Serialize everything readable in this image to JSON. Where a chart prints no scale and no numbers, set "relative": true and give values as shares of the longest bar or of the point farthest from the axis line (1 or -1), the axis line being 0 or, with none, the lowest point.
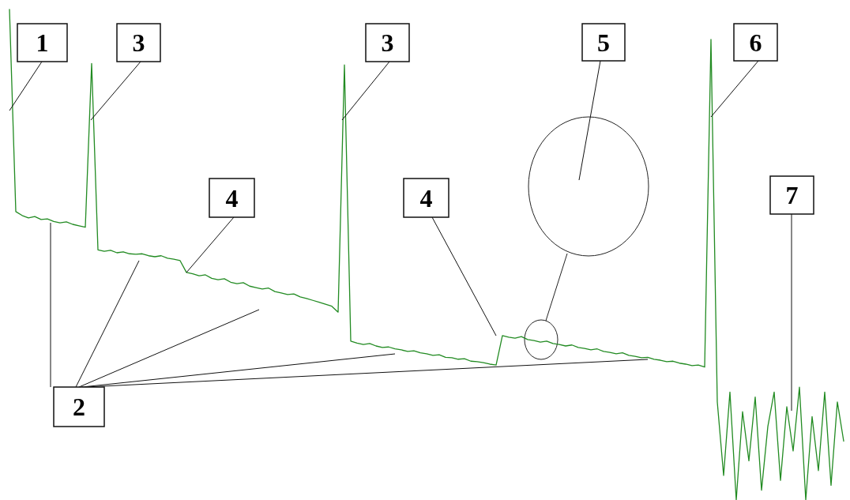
{
  "chart_data": {
    "type": "line",
    "relative": true,
    "categories": [
      null,
      null,
      null,
      null,
      null,
      null,
      null,
      null,
      null,
      null,
      null,
      null,
      null,
      null,
      null,
      null,
      null,
      null,
      null,
      null,
      null,
      null,
      null,
      null,
      null,
      null,
      null,
      null,
      null,
      null,
      null,
      null,
      null,
      null,
      null,
      null,
      null,
      null,
      null,
      null,
      null,
      null,
      null,
      null,
      null,
      null,
      null,
      null,
      null,
      null,
      null,
      null,
      null,
      null,
      null,
      null,
      null,
      null,
      null,
      null,
      null,
      null,
      null,
      null,
      null,
      null,
      null,
      null,
      null,
      null,
      null,
      null,
      null,
      null,
      null,
      null,
      null,
      null,
      null,
      null,
      null,
      null,
      null,
      null,
      null,
      null,
      null,
      null,
      null,
      null,
      null,
      null,
      null,
      null,
      null,
      null,
      null,
      null,
      null,
      null,
      null,
      null,
      null,
      null,
      null,
      null,
      null,
      null,
      null,
      null,
      null,
      null,
      null,
      null,
      null,
      null,
      null,
      null,
      null,
      null,
      null,
      null,
      null,
      null,
      null,
      null,
      null,
      null,
      null,
      null,
      null,
      null,
      null
    ],
    "series": [
      {
        "color": "#228b22",
        "values": [
          1.0,
          0.588,
          0.58,
          0.575,
          0.578,
          0.572,
          0.573,
          0.568,
          0.565,
          0.567,
          0.562,
          0.559,
          0.556,
          0.89,
          0.51,
          0.507,
          0.509,
          0.504,
          0.506,
          0.502,
          0.501,
          0.502,
          0.498,
          0.496,
          0.498,
          0.493,
          0.491,
          0.488,
          0.464,
          0.461,
          0.457,
          0.459,
          0.452,
          0.449,
          0.451,
          0.444,
          0.441,
          0.443,
          0.436,
          0.433,
          0.43,
          0.432,
          0.425,
          0.422,
          0.419,
          0.42,
          0.414,
          0.411,
          0.407,
          0.403,
          0.399,
          0.395,
          0.383,
          0.887,
          0.324,
          0.32,
          0.317,
          0.319,
          0.314,
          0.311,
          0.312,
          0.308,
          0.306,
          0.303,
          0.304,
          0.3,
          0.298,
          0.295,
          0.296,
          0.291,
          0.29,
          0.287,
          0.288,
          0.283,
          0.282,
          0.28,
          0.277,
          0.275,
          0.335,
          0.332,
          0.33,
          0.333,
          0.327,
          0.325,
          0.322,
          0.324,
          0.319,
          0.317,
          0.314,
          0.316,
          0.311,
          0.309,
          0.306,
          0.308,
          0.303,
          0.301,
          0.298,
          0.3,
          0.295,
          0.293,
          0.29,
          0.291,
          0.287,
          0.285,
          0.282,
          0.283,
          0.279,
          0.277,
          0.274,
          0.275,
          0.271,
          0.939,
          0.2,
          0.05,
          0.22,
          0.0,
          0.18,
          0.08,
          0.21,
          0.02,
          0.15,
          0.22,
          0.04,
          0.19,
          0.1,
          0.23,
          0.0,
          0.17,
          0.06,
          0.22,
          0.03,
          0.2,
          0.12
        ]
      }
    ],
    "annotations": [
      "1",
      "3",
      "3",
      "4",
      "4",
      "5",
      "6",
      "2",
      "7"
    ]
  }
}
